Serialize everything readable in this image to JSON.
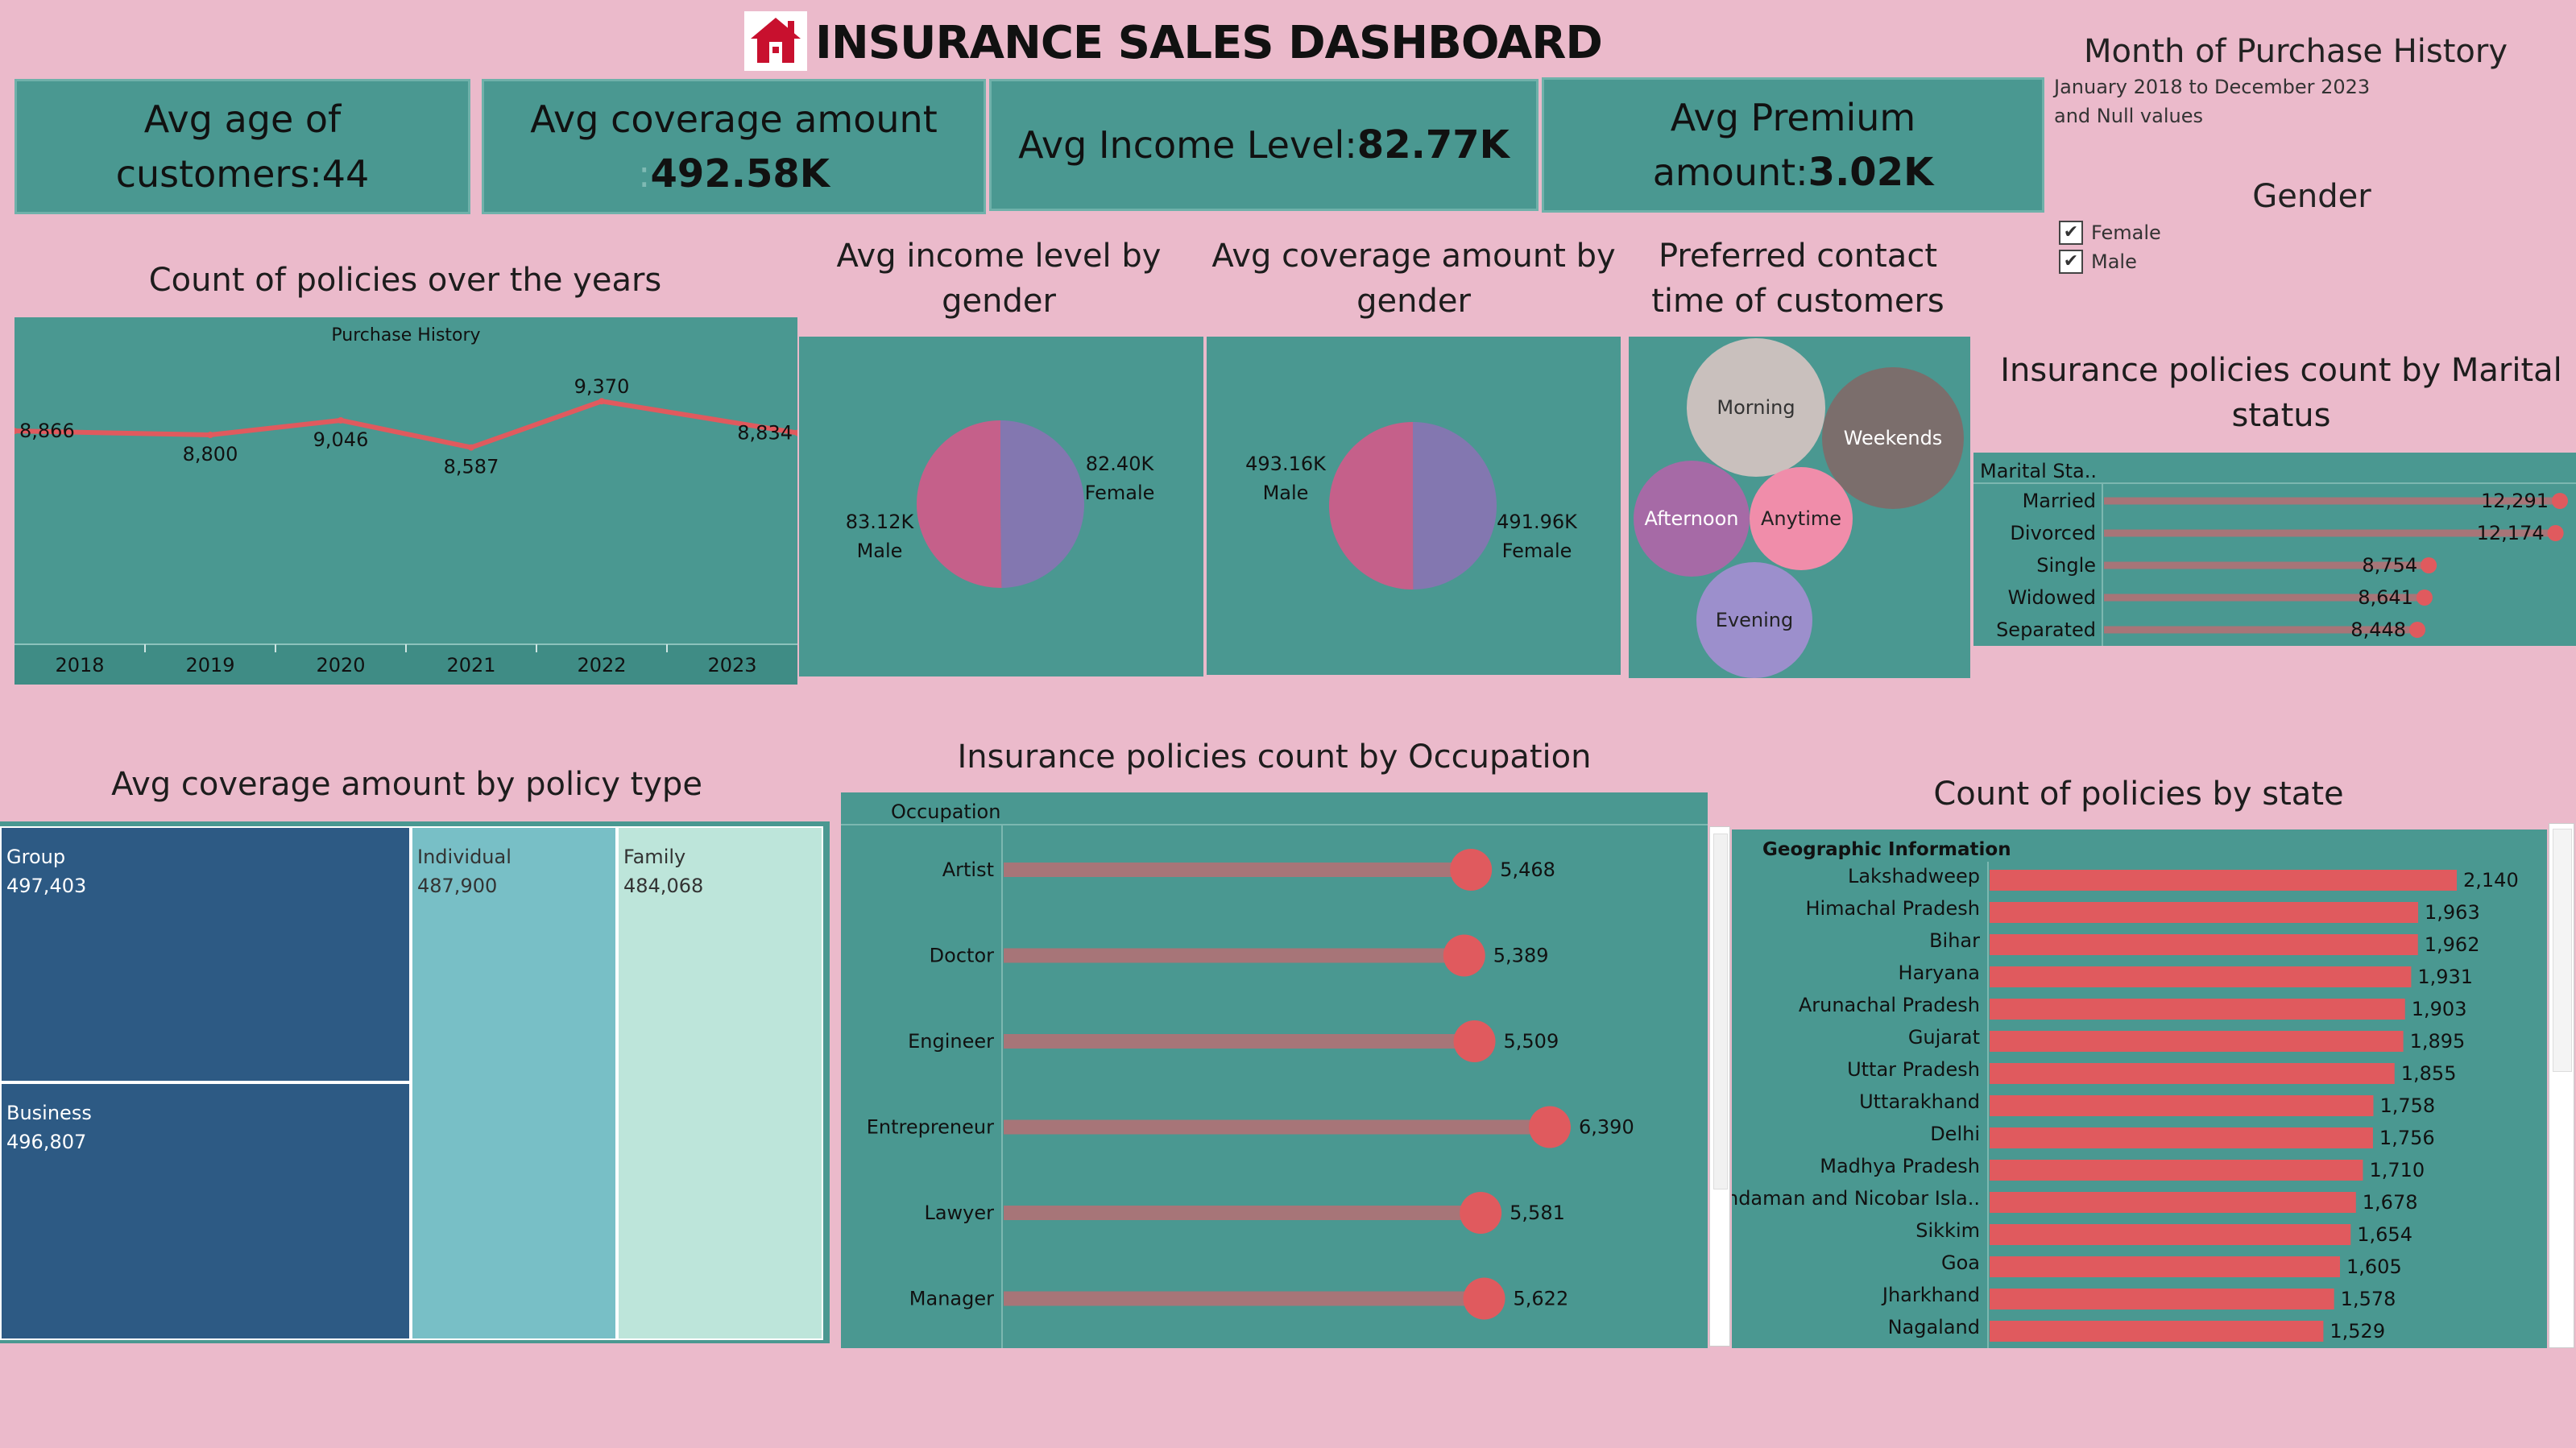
{
  "header": {
    "title": "INSURANCE SALES DASHBOARD",
    "logo_icon": "house-shield-icon",
    "brand_color": "#c8102e"
  },
  "kpis": {
    "age_line1": "Avg age of",
    "age_line2": "customers:44",
    "coverage_line1": "Avg coverage amount",
    "coverage_line2_prefix": ":",
    "coverage_value": "492.58K",
    "income_label": "Avg Income Level:",
    "income_value": "82.77K",
    "premium_line1": "Avg Premium",
    "premium_line2_prefix": "amount:",
    "premium_value": "3.02K"
  },
  "filters": {
    "month_title": "Month of Purchase History",
    "month_range": "January 2018 to December 2023",
    "month_null": "and Null values",
    "gender_title": "Gender",
    "gender_options": [
      {
        "label": "Female",
        "checked": true
      },
      {
        "label": "Male",
        "checked": true
      }
    ],
    "check_glyph": "✔"
  },
  "titles": {
    "policies_years": "Count of policies over the years",
    "income_gender_1": "Avg income level by",
    "income_gender_2": "gender",
    "coverage_gender_1": "Avg coverage amount by",
    "coverage_gender_2": "gender",
    "contact_1": "Preferred contact",
    "contact_2": "time of customers",
    "marital_1": "Insurance policies count by Marital",
    "marital_2": "status",
    "policy_type": "Avg coverage amount by policy type",
    "occupation": "Insurance policies count by Occupation",
    "state": "Count of policies by state"
  },
  "colors": {
    "background": "#ebbacb",
    "panel": "#4a9891",
    "bar_red": "#e05a5e",
    "line_red": "#e05a5e",
    "male_pink": "#c5608a",
    "female_purple": "#8377b0",
    "lollipop_bar": "#a77578"
  },
  "chart_data": [
    {
      "id": "policies_over_years",
      "type": "line",
      "title": "Count of policies over the years",
      "subtitle": "Purchase History",
      "categories": [
        "2018",
        "2019",
        "2020",
        "2021",
        "2022",
        "2023"
      ],
      "values": [
        8866,
        8800,
        9046,
        8587,
        9370,
        8834
      ],
      "value_labels": [
        "8,866",
        "8,800",
        "9,046",
        "8,587",
        "9,370",
        "8,834"
      ]
    },
    {
      "id": "income_by_gender",
      "type": "pie",
      "title": "Avg income level by gender",
      "slices": [
        {
          "name": "Male",
          "value": 83.12,
          "label": "83.12K",
          "color": "#c5608a"
        },
        {
          "name": "Female",
          "value": 82.4,
          "label": "82.40K",
          "color": "#8377b0"
        }
      ]
    },
    {
      "id": "coverage_by_gender",
      "type": "pie",
      "title": "Avg coverage amount by gender",
      "slices": [
        {
          "name": "Male",
          "value": 493.16,
          "label": "493.16K",
          "color": "#c5608a"
        },
        {
          "name": "Female",
          "value": 491.96,
          "label": "491.96K",
          "color": "#8377b0"
        }
      ]
    },
    {
      "id": "contact_time",
      "type": "bubble",
      "title": "Preferred contact time of customers",
      "bubbles": [
        {
          "name": "Morning",
          "color": "#c9c0bd",
          "text_color": "#333"
        },
        {
          "name": "Weekends",
          "color": "#7b6e6c",
          "text_color": "#fff"
        },
        {
          "name": "Afternoon",
          "color": "#a66aa6",
          "text_color": "#fff"
        },
        {
          "name": "Anytime",
          "color": "#f08daa",
          "text_color": "#222"
        },
        {
          "name": "Evening",
          "color": "#9c8fcc",
          "text_color": "#222"
        }
      ]
    },
    {
      "id": "marital_status",
      "type": "bar",
      "title": "Insurance policies count by Marital status",
      "header": "Marital Sta..",
      "categories": [
        "Married",
        "Divorced",
        "Single",
        "Widowed",
        "Separated"
      ],
      "values": [
        12291,
        12174,
        8754,
        8641,
        8448
      ],
      "value_labels": [
        "12,291",
        "12,174",
        "8,754",
        "8,641",
        "8,448"
      ]
    },
    {
      "id": "policy_type",
      "type": "treemap",
      "title": "Avg coverage amount by policy type",
      "items": [
        {
          "name": "Group",
          "value": 497403,
          "label": "497,403",
          "color": "#2d5a84",
          "text_color": "#fff"
        },
        {
          "name": "Business",
          "value": 496807,
          "label": "496,807",
          "color": "#2d5a84",
          "text_color": "#fff"
        },
        {
          "name": "Individual",
          "value": 487900,
          "label": "487,900",
          "color": "#78bfc6",
          "text_color": "#333"
        },
        {
          "name": "Family",
          "value": 484068,
          "label": "484,068",
          "color": "#bde5da",
          "text_color": "#333"
        }
      ]
    },
    {
      "id": "occupation",
      "type": "bar",
      "title": "Insurance policies count by Occupation",
      "header": "Occupation",
      "categories": [
        "Artist",
        "Doctor",
        "Engineer",
        "Entrepreneur",
        "Lawyer",
        "Manager"
      ],
      "values": [
        5468,
        5389,
        5509,
        6390,
        5581,
        5622
      ],
      "value_labels": [
        "5,468",
        "5,389",
        "5,509",
        "6,390",
        "5,581",
        "5,622"
      ]
    },
    {
      "id": "state",
      "type": "bar",
      "title": "Count of policies by state",
      "header": "Geographic Information",
      "categories": [
        "Lakshadweep",
        "Himachal Pradesh",
        "Bihar",
        "Haryana",
        "Arunachal Pradesh",
        "Gujarat",
        "Uttar Pradesh",
        "Uttarakhand",
        "Delhi",
        "Madhya Pradesh",
        "Andaman and Nicobar Isla..",
        "Sikkim",
        "Goa",
        "Jharkhand",
        "Nagaland"
      ],
      "values": [
        2140,
        1963,
        1962,
        1931,
        1903,
        1895,
        1855,
        1758,
        1756,
        1710,
        1678,
        1654,
        1605,
        1578,
        1529
      ],
      "value_labels": [
        "2,140",
        "1,963",
        "1,962",
        "1,931",
        "1,903",
        "1,895",
        "1,855",
        "1,758",
        "1,756",
        "1,710",
        "1,678",
        "1,654",
        "1,605",
        "1,578",
        "1,529"
      ]
    }
  ]
}
